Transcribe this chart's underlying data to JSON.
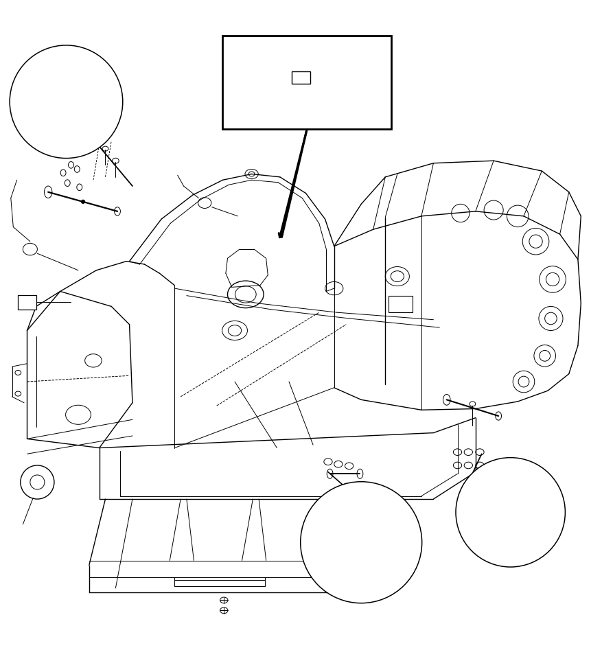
{
  "background_color": "#ffffff",
  "line_color": "#000000",
  "line_width": 1.2,
  "figure_width": 8.77,
  "figure_height": 9.63,
  "dpi": 100
}
